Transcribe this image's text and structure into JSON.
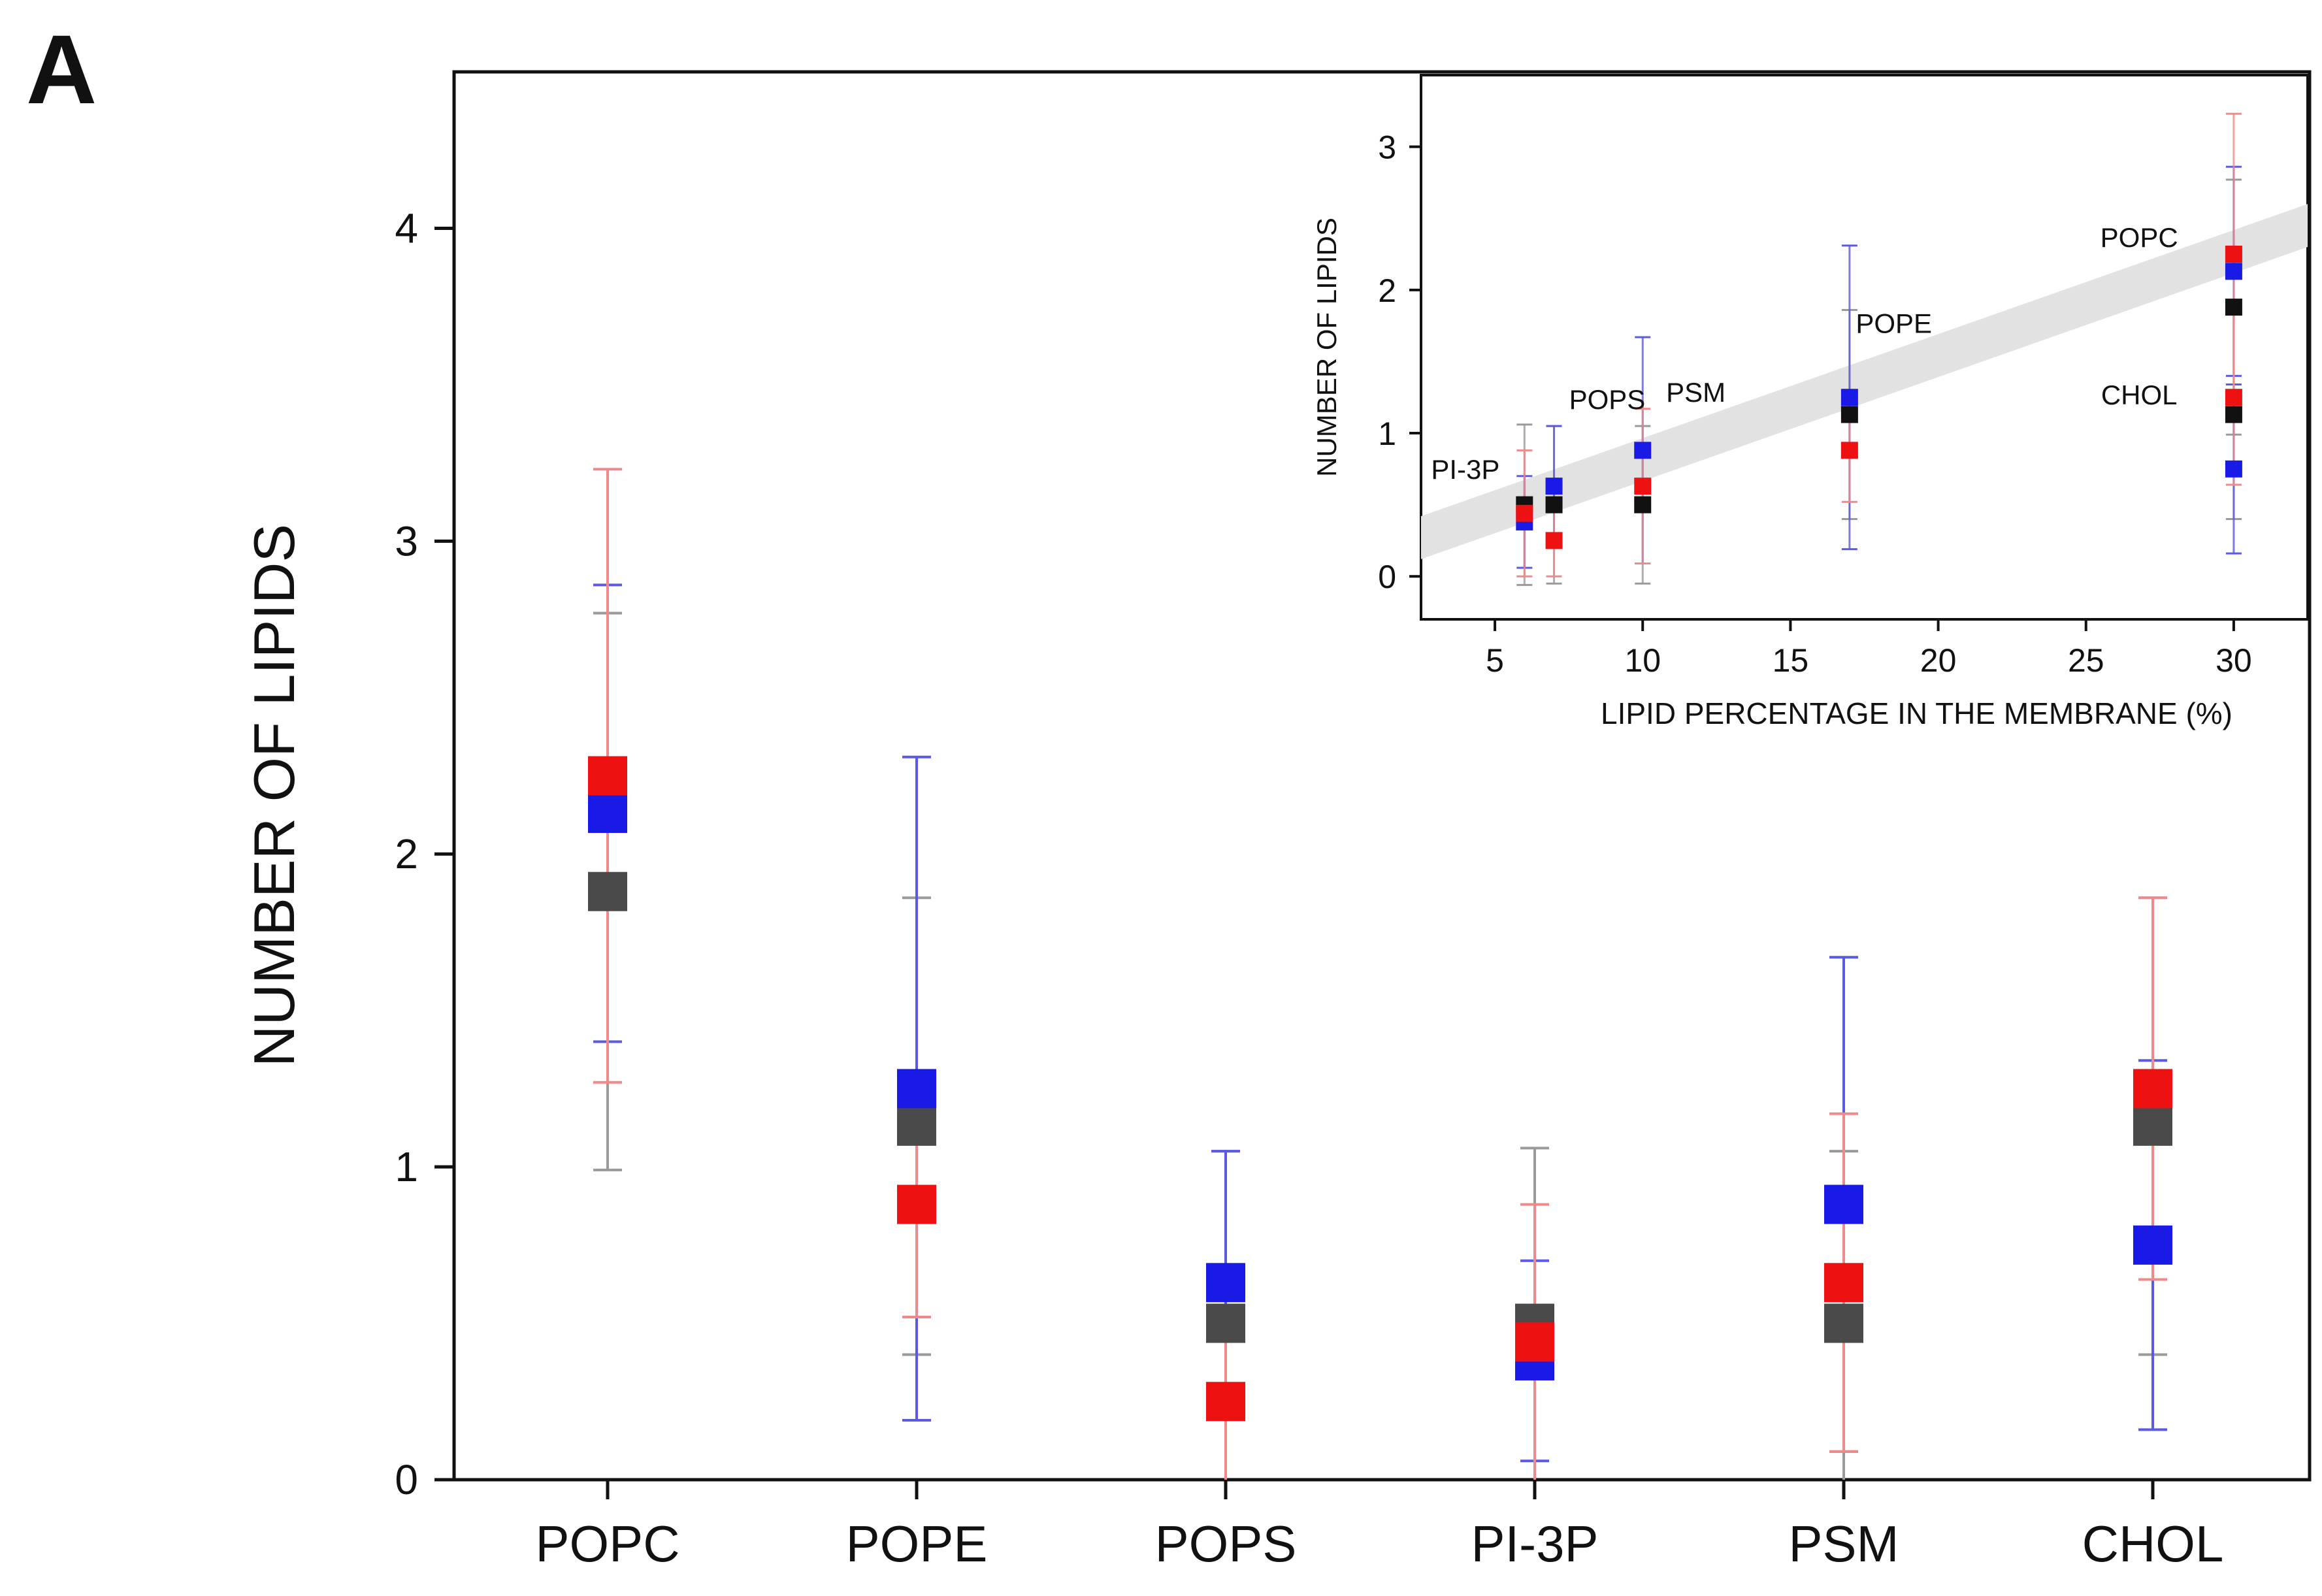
{
  "panel_label": "A",
  "colors": {
    "red": "#ee1111",
    "blue": "#1a1ae6",
    "gray": "#4a4a4a",
    "black": "#111111",
    "red_err": "#f08a8a",
    "blue_err": "#5a5ae6",
    "gray_err": "#9a9a9a",
    "band": "#e2e2e2"
  },
  "chart_data": [
    {
      "type": "scatter",
      "title": "",
      "xlabel": "",
      "ylabel": "NUMBER OF LIPIDS",
      "categories": [
        "POPC",
        "POPE",
        "POPS",
        "PI-3P",
        "PSM",
        "CHOL"
      ],
      "ylim": [
        0,
        4.5
      ],
      "yticks": [
        0,
        1,
        2,
        3,
        4
      ],
      "series": [
        {
          "name": "red",
          "color": "red",
          "values": [
            2.25,
            0.88,
            0.25,
            0.44,
            0.63,
            1.25
          ],
          "err": [
            0.98,
            0.36,
            0.25,
            0.44,
            0.54,
            0.61
          ]
        },
        {
          "name": "blue",
          "color": "blue",
          "values": [
            2.13,
            1.25,
            0.63,
            0.38,
            0.88,
            0.75
          ],
          "err": [
            0.73,
            1.06,
            0.42,
            0.32,
            0.79,
            0.59
          ]
        },
        {
          "name": "gray",
          "color": "gray",
          "values": [
            1.88,
            1.13,
            0.5,
            0.5,
            0.5,
            1.13
          ],
          "err": [
            0.89,
            0.73,
            0.55,
            0.56,
            0.55,
            0.73
          ]
        }
      ]
    },
    {
      "type": "scatter",
      "title": "",
      "xlabel": "LIPID PERCENTAGE IN THE MEMBRANE (%)",
      "ylabel": "NUMBER OF LIPIDS",
      "xlim": [
        2.5,
        32.5
      ],
      "ylim": [
        -0.3,
        3.5
      ],
      "xticks": [
        5,
        10,
        15,
        20,
        25,
        30
      ],
      "yticks": [
        0,
        1,
        2,
        3
      ],
      "band": {
        "x": [
          2.5,
          32.5
        ],
        "y_low": [
          0.12,
          2.3
        ],
        "y_high": [
          0.42,
          2.6
        ]
      },
      "annotations": [
        {
          "text": "PI-3P",
          "x": 4.0,
          "y": 0.68
        },
        {
          "text": "POPS",
          "x": 8.8,
          "y": 1.17
        },
        {
          "text": "PSM",
          "x": 11.8,
          "y": 1.22
        },
        {
          "text": "POPE",
          "x": 18.5,
          "y": 1.7
        },
        {
          "text": "POPC",
          "x": 26.8,
          "y": 2.3
        },
        {
          "text": "CHOL",
          "x": 26.8,
          "y": 1.2
        }
      ],
      "series": [
        {
          "name": "red",
          "color": "red",
          "x": [
            30,
            17,
            7,
            6,
            10,
            30
          ],
          "values": [
            2.25,
            0.88,
            0.25,
            0.44,
            0.63,
            1.25
          ],
          "err": [
            0.98,
            0.36,
            0.25,
            0.44,
            0.54,
            0.61
          ]
        },
        {
          "name": "blue",
          "color": "blue",
          "x": [
            30,
            17,
            7,
            6,
            10,
            30
          ],
          "values": [
            2.13,
            1.25,
            0.63,
            0.38,
            0.88,
            0.75
          ],
          "err": [
            0.73,
            1.06,
            0.42,
            0.32,
            0.79,
            0.59
          ]
        },
        {
          "name": "black",
          "color": "black",
          "x": [
            30,
            17,
            7,
            6,
            10,
            30
          ],
          "values": [
            1.88,
            1.13,
            0.5,
            0.5,
            0.5,
            1.13
          ],
          "err": [
            0.89,
            0.73,
            0.55,
            0.56,
            0.55,
            0.73
          ]
        }
      ]
    }
  ]
}
